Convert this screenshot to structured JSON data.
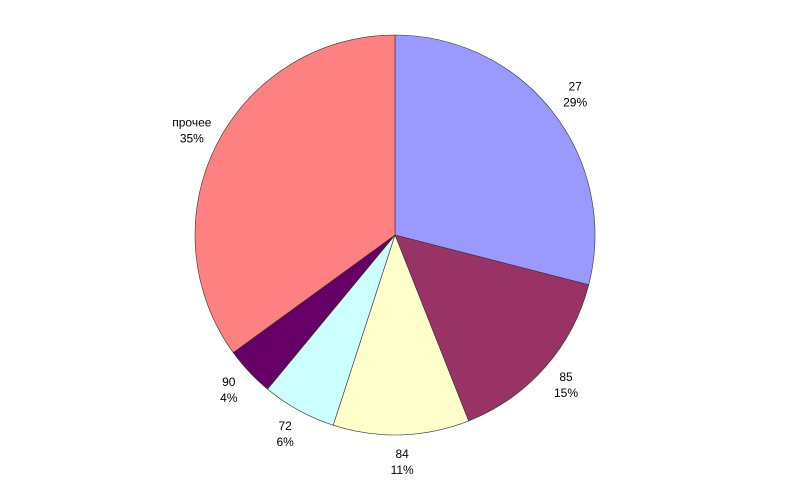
{
  "chart_data": {
    "type": "pie",
    "categories": [
      "27",
      "85",
      "84",
      "72",
      "90",
      "прочее"
    ],
    "values": [
      29,
      15,
      11,
      6,
      4,
      35
    ],
    "value_labels": [
      "29%",
      "15%",
      "11%",
      "6%",
      "4%",
      "35%"
    ],
    "colors": [
      "#9999ff",
      "#993366",
      "#ffffcc",
      "#ccffff",
      "#660066",
      "#ff8080"
    ]
  }
}
